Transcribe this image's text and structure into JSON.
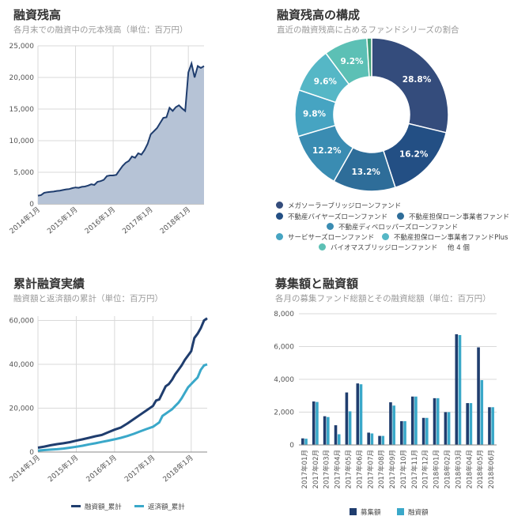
{
  "colors": {
    "navy": "#1f3d6e",
    "teal": "#3aa8c9",
    "area_fill": "#b6c3d6",
    "grid": "#d9d9d9",
    "axis": "#888888",
    "text": "#555555"
  },
  "chart_data": [
    {
      "id": "balance",
      "type": "area",
      "title": "融資残高",
      "subtitle": "各月末での融資中の元本残高（単位：百万円）",
      "x_tick_labels": [
        "2014年1月",
        "2015年1月",
        "2016年1月",
        "2017年1月",
        "2018年1月"
      ],
      "x_tick_months": [
        0,
        12,
        24,
        36,
        48
      ],
      "y_tick_labels": [
        "0",
        "5,000",
        "10,000",
        "15,000",
        "20,000",
        "25,000"
      ],
      "ylim": [
        0,
        25000
      ],
      "x_range_months": [
        0,
        53
      ],
      "grid": true,
      "series": [
        {
          "values_x_months": [
            0,
            1,
            2,
            3,
            4,
            5,
            6,
            7,
            8,
            9,
            10,
            11,
            12,
            13,
            14,
            15,
            16,
            17,
            18,
            19,
            20,
            21,
            22,
            23,
            24,
            25,
            26,
            27,
            28,
            29,
            30,
            31,
            32,
            33,
            34,
            35,
            36,
            37,
            38,
            39,
            40,
            41,
            42,
            43,
            44,
            45,
            46,
            47,
            48,
            49,
            50,
            51,
            52,
            53
          ],
          "values": [
            1300,
            1400,
            1750,
            1850,
            1900,
            1950,
            2050,
            2100,
            2200,
            2300,
            2350,
            2500,
            2600,
            2550,
            2700,
            2750,
            2900,
            3100,
            3000,
            3500,
            3600,
            3800,
            4400,
            4500,
            4500,
            4600,
            5300,
            6000,
            6500,
            6800,
            7500,
            7300,
            8000,
            7800,
            8500,
            9500,
            11000,
            11500,
            12000,
            12800,
            13600,
            13700,
            15200,
            14700,
            15300,
            15600,
            15100,
            14700,
            20800,
            22200,
            20000,
            21800,
            21500,
            21800
          ]
        }
      ]
    },
    {
      "id": "composition",
      "type": "pie",
      "title": "融資残高の構成",
      "subtitle": "直近の融資残高に占めるファンドシリーズの割合",
      "slices": [
        {
          "label": "メガソーラーブリッジローンファンド",
          "value": 28.8,
          "value_label": "28.8%",
          "color": "#344c7c"
        },
        {
          "label": "不動産バイヤーズローンファンド",
          "value": 16.2,
          "value_label": "16.2%",
          "color": "#234f84"
        },
        {
          "label": "不動産担保ローン事業者ファンド",
          "value": 13.2,
          "value_label": "13.2%",
          "color": "#2e6d99"
        },
        {
          "label": "不動産ディベロッパーズローンファンド",
          "value": 12.2,
          "value_label": "12.2%",
          "color": "#3a8cb2"
        },
        {
          "label": "サービサーズローンファンド",
          "value": 9.8,
          "value_label": "9.8%",
          "color": "#46a4c2"
        },
        {
          "label": "不動産担保ローン事業者ファンドPlus",
          "value": 9.6,
          "value_label": "9.6%",
          "color": "#55b7c6"
        },
        {
          "label": "バイオマスブリッジローンファンド",
          "value": 9.2,
          "value_label": "9.2%",
          "color": "#5cc0b5"
        },
        {
          "label": "他 4 個",
          "value": 1.0,
          "value_label": "",
          "color": "#3f9e78"
        }
      ],
      "legend_more": "他 4 個"
    },
    {
      "id": "cumulative",
      "type": "line",
      "title": "累計融資実績",
      "subtitle": "融資額と返済額の累計（単位：百万円）",
      "x_tick_labels": [
        "2014年1月",
        "2015年1月",
        "2016年1月",
        "2017年1月",
        "2018年1月"
      ],
      "x_tick_months": [
        0,
        12,
        24,
        36,
        48
      ],
      "y_tick_labels": [
        "0",
        "20,000",
        "40,000",
        "60,000"
      ],
      "ylim": [
        0,
        62000
      ],
      "x_range_months": [
        0,
        53
      ],
      "grid": true,
      "legend_position": "bottom",
      "series": [
        {
          "name": "融資額_累計",
          "color": "#1f3d6e",
          "values_x_months": [
            0,
            2,
            4,
            6,
            8,
            10,
            12,
            14,
            16,
            18,
            20,
            22,
            24,
            26,
            28,
            30,
            32,
            34,
            36,
            37,
            38,
            39,
            40,
            41,
            42,
            43,
            44,
            45,
            46,
            47,
            48,
            49,
            50,
            51,
            52,
            53
          ],
          "values": [
            2000,
            2500,
            3100,
            3600,
            4000,
            4500,
            5200,
            5800,
            6500,
            7200,
            7800,
            9000,
            10200,
            11200,
            13000,
            15000,
            17000,
            19000,
            21000,
            23500,
            24000,
            27000,
            30000,
            31000,
            33000,
            35500,
            37500,
            39500,
            42000,
            44000,
            46000,
            52000,
            54000,
            56500,
            60000,
            61000
          ]
        },
        {
          "name": "返済額_累計",
          "color": "#3aa8c9",
          "values_x_months": [
            0,
            2,
            4,
            6,
            8,
            10,
            12,
            14,
            16,
            18,
            20,
            22,
            24,
            26,
            28,
            30,
            32,
            34,
            36,
            37,
            38,
            39,
            40,
            41,
            42,
            43,
            44,
            45,
            46,
            47,
            48,
            49,
            50,
            51,
            52,
            53
          ],
          "values": [
            700,
            900,
            1100,
            1300,
            1600,
            2000,
            2400,
            2900,
            3500,
            4000,
            4600,
            5200,
            5800,
            6500,
            7300,
            8300,
            9400,
            10500,
            11500,
            12500,
            13500,
            16500,
            17500,
            18500,
            19500,
            21000,
            22500,
            24500,
            27000,
            29500,
            31000,
            32500,
            34000,
            37500,
            39500,
            40000
          ]
        }
      ]
    },
    {
      "id": "fundraising",
      "type": "bar",
      "title": "募集額と融資額",
      "subtitle": "各月の募集ファンド総額とその融資総額（単位：百万円）",
      "categories": [
        "2017年01月",
        "2017年02月",
        "2017年03月",
        "2017年04月",
        "2017年05月",
        "2017年06月",
        "2017年07月",
        "2017年08月",
        "2017年09月",
        "2017年10月",
        "2017年11月",
        "2017年12月",
        "2018年01月",
        "2018年02月",
        "2018年03月",
        "2018年04月",
        "2018年05月",
        "2018年06月"
      ],
      "y_tick_labels": [
        "0",
        "2,000",
        "4,000",
        "6,000",
        "8,000"
      ],
      "ylim": [
        0,
        8000
      ],
      "grid": true,
      "legend_position": "bottom",
      "series": [
        {
          "name": "募集額",
          "color": "#1f3d6e",
          "values": [
            400,
            2650,
            1750,
            1200,
            3200,
            3750,
            750,
            550,
            2600,
            1450,
            2950,
            1650,
            2850,
            2000,
            6750,
            2550,
            5950,
            2300
          ]
        },
        {
          "name": "融資額",
          "color": "#3aa8c9",
          "values": [
            380,
            2620,
            1700,
            650,
            2050,
            3700,
            700,
            550,
            2400,
            1450,
            2950,
            1650,
            2850,
            2000,
            6700,
            2550,
            3950,
            2300
          ]
        }
      ]
    }
  ]
}
